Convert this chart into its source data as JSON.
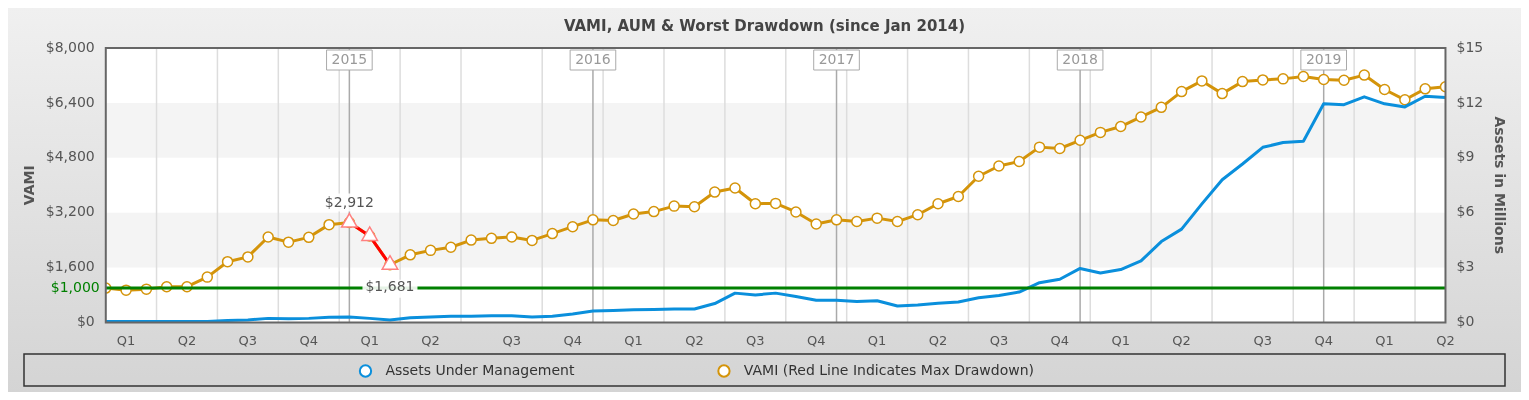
{
  "chart_data": {
    "type": "line",
    "title": "VAMI, AUM & Worst Drawdown (since Jan 2014)",
    "ylabel": "VAMI",
    "y2label": "Assets in Millions",
    "x": [
      "2014-01",
      "2014-02",
      "2014-03",
      "2014-04",
      "2014-05",
      "2014-06",
      "2014-07",
      "2014-08",
      "2014-09",
      "2014-10",
      "2014-11",
      "2014-12",
      "2015-01",
      "2015-02",
      "2015-03",
      "2015-04",
      "2015-05",
      "2015-06",
      "2015-07",
      "2015-08",
      "2015-09",
      "2015-10",
      "2015-11",
      "2015-12",
      "2016-01",
      "2016-02",
      "2016-03",
      "2016-04",
      "2016-05",
      "2016-06",
      "2016-07",
      "2016-08",
      "2016-09",
      "2016-10",
      "2016-11",
      "2016-12",
      "2017-01",
      "2017-02",
      "2017-03",
      "2017-04",
      "2017-05",
      "2017-06",
      "2017-07",
      "2017-08",
      "2017-09",
      "2017-10",
      "2017-11",
      "2017-12",
      "2018-01",
      "2018-02",
      "2018-03",
      "2018-04",
      "2018-05",
      "2018-06",
      "2018-07",
      "2018-08",
      "2018-09",
      "2018-10",
      "2018-11",
      "2018-12",
      "2019-01",
      "2019-02",
      "2019-03",
      "2019-04",
      "2019-05",
      "2019-06",
      "2019-07"
    ],
    "series": [
      {
        "name": "Assets Under Management",
        "color": "#0a8fdc",
        "axis": "y2",
        "marker": "none",
        "values": [
          0.05,
          0.05,
          0.05,
          0.05,
          0.05,
          0.05,
          0.1,
          0.13,
          0.22,
          0.2,
          0.22,
          0.28,
          0.3,
          0.22,
          0.13,
          0.26,
          0.3,
          0.34,
          0.34,
          0.37,
          0.37,
          0.3,
          0.34,
          0.46,
          0.62,
          0.65,
          0.69,
          0.71,
          0.73,
          0.73,
          1.03,
          1.6,
          1.5,
          1.6,
          1.42,
          1.21,
          1.21,
          1.14,
          1.18,
          0.9,
          0.95,
          1.05,
          1.12,
          1.35,
          1.47,
          1.66,
          2.17,
          2.36,
          2.95,
          2.7,
          2.89,
          3.36,
          4.42,
          5.1,
          6.48,
          7.8,
          8.66,
          9.57,
          9.83,
          9.9,
          11.95,
          11.9,
          12.33,
          11.95,
          11.78,
          12.36,
          12.3
        ]
      },
      {
        "name": "VAMI (Red Line Indicates Max Drawdown)",
        "color": "#d4940a",
        "marker": "circle",
        "values": [
          1000,
          940,
          970,
          1040,
          1040,
          1320,
          1770,
          1910,
          2490,
          2340,
          2480,
          2850,
          2912,
          2520,
          1681,
          1970,
          2100,
          2190,
          2400,
          2450,
          2490,
          2390,
          2590,
          2790,
          2990,
          2970,
          3160,
          3230,
          3390,
          3370,
          3800,
          3920,
          3460,
          3470,
          3220,
          2870,
          2990,
          2940,
          3040,
          2940,
          3140,
          3460,
          3670,
          4260,
          4560,
          4690,
          5110,
          5070,
          5310,
          5540,
          5710,
          5990,
          6270,
          6730,
          7040,
          6670,
          7020,
          7070,
          7100,
          7170,
          7080,
          7060,
          7210,
          6790,
          6490,
          6810,
          6870
        ]
      },
      {
        "color": "#ff0000",
        "marker": "triangle",
        "x": [
          "2015-01",
          "2015-02",
          "2015-03"
        ],
        "values": [
          2912,
          2520,
          1681
        ]
      }
    ],
    "xlim": [
      "2014-01",
      "2019-07"
    ],
    "xticks": [
      {
        "value": "2014-02",
        "label": "Q1"
      },
      {
        "value": "2014-05",
        "label": "Q2"
      },
      {
        "value": "2014-08",
        "label": "Q3"
      },
      {
        "value": "2014-11",
        "label": "Q4"
      },
      {
        "value": "2015-02",
        "label": "Q1"
      },
      {
        "value": "2015-05",
        "label": "Q2"
      },
      {
        "value": "2015-09",
        "label": "Q3"
      },
      {
        "value": "2015-12",
        "label": "Q4"
      },
      {
        "value": "2016-03",
        "label": "Q1"
      },
      {
        "value": "2016-06",
        "label": "Q2"
      },
      {
        "value": "2016-09",
        "label": "Q3"
      },
      {
        "value": "2016-12",
        "label": "Q4"
      },
      {
        "value": "2017-03",
        "label": "Q1"
      },
      {
        "value": "2017-06",
        "label": "Q2"
      },
      {
        "value": "2017-09",
        "label": "Q3"
      },
      {
        "value": "2017-12",
        "label": "Q4"
      },
      {
        "value": "2018-03",
        "label": "Q1"
      },
      {
        "value": "2018-06",
        "label": "Q2"
      },
      {
        "value": "2018-10",
        "label": "Q3"
      },
      {
        "value": "2019-01",
        "label": "Q4"
      },
      {
        "value": "2019-04",
        "label": "Q1"
      },
      {
        "value": "2019-07",
        "label": "Q2"
      }
    ],
    "ylim": [
      0,
      8000
    ],
    "yticks": [
      {
        "value": 0,
        "label": "$0"
      },
      {
        "value": 1600,
        "label": "$1,600"
      },
      {
        "value": 3200,
        "label": "$3,200"
      },
      {
        "value": 4800,
        "label": "$4,800"
      },
      {
        "value": 6400,
        "label": "$6,400"
      },
      {
        "value": 8000,
        "label": "$8,000"
      }
    ],
    "y2lim": [
      0,
      15
    ],
    "y2ticks": [
      {
        "value": 0,
        "label": "$0"
      },
      {
        "value": 3,
        "label": "$3"
      },
      {
        "value": 6,
        "label": "$6"
      },
      {
        "value": 9,
        "label": "$9"
      },
      {
        "value": 12,
        "label": "$12"
      },
      {
        "value": 15,
        "label": "$15"
      }
    ],
    "ref_lines": [
      {
        "axis": "y",
        "value": 1000,
        "label": "$1,000",
        "color": "#008000"
      },
      {
        "axis": "x",
        "value": "2015-01",
        "label": "2015",
        "color": "#aaaaaa"
      },
      {
        "axis": "x",
        "value": "2016-01",
        "label": "2016",
        "color": "#aaaaaa"
      },
      {
        "axis": "x",
        "value": "2017-01",
        "label": "2017",
        "color": "#aaaaaa"
      },
      {
        "axis": "x",
        "value": "2018-01",
        "label": "2018",
        "color": "#aaaaaa"
      },
      {
        "axis": "x",
        "value": "2019-01",
        "label": "2019",
        "color": "#aaaaaa"
      }
    ],
    "annotations": [
      {
        "text": "$2,912",
        "x": "2015-01",
        "y": 2912
      },
      {
        "text": "$1,681",
        "x": "2015-03",
        "y": 1681
      }
    ],
    "grid": true,
    "legend": "bottom",
    "line_style": "solid"
  }
}
